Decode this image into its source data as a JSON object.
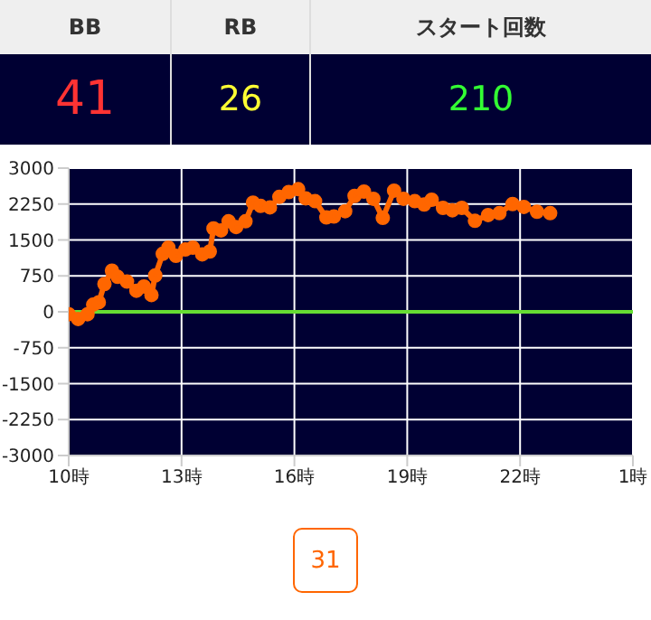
{
  "chart_data": [
    {
      "type": "other",
      "categories": [
        "BB",
        "RB",
        "スタート回数"
      ],
      "value_labels": [
        "41",
        "26",
        "210"
      ]
    },
    {
      "type": "line",
      "x": [
        "--01-01T10:00",
        "--01-01T10:15",
        "--01-01T10:30",
        "--01-01T10:39",
        "--01-01T10:48",
        "--01-01T10:57",
        "--01-01T11:09",
        "--01-01T11:18",
        "--01-01T11:33",
        "--01-01T11:48",
        "--01-01T12:00",
        "--01-01T12:12",
        "--01-01T12:18",
        "--01-01T12:30",
        "--01-01T12:39",
        "--01-01T12:51",
        "--01-01T13:06",
        "--01-01T13:18",
        "--01-01T13:33",
        "--01-01T13:45",
        "--01-01T13:51",
        "--01-01T14:03",
        "--01-01T14:15",
        "--01-01T14:27",
        "--01-01T14:42",
        "--01-01T14:54",
        "--01-01T15:06",
        "--01-01T15:21",
        "--01-01T15:36",
        "--01-01T15:51",
        "--01-01T16:06",
        "--01-01T16:18",
        "--01-01T16:33",
        "--01-01T16:51",
        "--01-01T17:03",
        "--01-01T17:21",
        "--01-01T17:36",
        "--01-01T17:51",
        "--01-01T18:06",
        "--01-01T18:21",
        "--01-01T18:39",
        "--01-01T18:54",
        "--01-01T19:12",
        "--01-01T19:27",
        "--01-01T19:39",
        "--01-01T19:57",
        "--01-01T20:12",
        "--01-01T20:27",
        "--01-01T20:48",
        "--01-01T21:09",
        "--01-01T21:27",
        "--01-01T21:48",
        "--01-01T22:06",
        "--01-01T22:27",
        "--01-01T22:48"
      ],
      "series": [
        {
          "color": "#ff6600",
          "values": [
            -50,
            -150,
            -50,
            150,
            200,
            580,
            860,
            730,
            630,
            440,
            530,
            350,
            760,
            1210,
            1340,
            1170,
            1300,
            1340,
            1200,
            1260,
            1740,
            1700,
            1890,
            1770,
            1890,
            2280,
            2210,
            2180,
            2400,
            2500,
            2560,
            2370,
            2310,
            1970,
            1990,
            2100,
            2420,
            2510,
            2360,
            1960,
            2530,
            2360,
            2310,
            2240,
            2340,
            2170,
            2120,
            2170,
            1900,
            2020,
            2060,
            2250,
            2190,
            2090,
            2060
          ]
        }
      ],
      "xlim": [
        "--01-01T10:00",
        "--01-02T01:00"
      ],
      "xticks": [
        {
          "value": "--01-01T10:00",
          "label": "10時"
        },
        {
          "value": "--01-01T13:00",
          "label": "13時"
        },
        {
          "value": "--01-01T16:00",
          "label": "16時"
        },
        {
          "value": "--01-01T19:00",
          "label": "19時"
        },
        {
          "value": "--01-01T22:00",
          "label": "22時"
        },
        {
          "value": "--01-02T01:00",
          "label": "1時"
        }
      ],
      "ylim": [
        -3000,
        3000
      ],
      "yticks": [
        -3000,
        -2250,
        -1500,
        -750,
        0,
        750,
        1500,
        2250,
        3000
      ],
      "grid": true,
      "marker": "circle",
      "line_style": "solid",
      "ref_lines": [
        {
          "axis": "y",
          "value": 0,
          "color": "#66dd33"
        }
      ],
      "annotations": [
        "31"
      ]
    }
  ]
}
